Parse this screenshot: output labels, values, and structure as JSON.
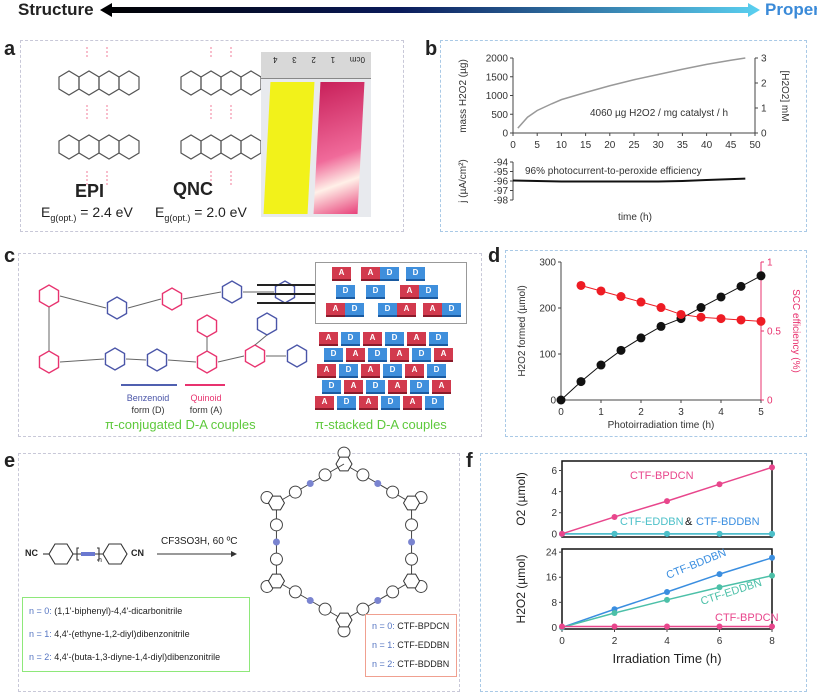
{
  "header": {
    "left": "Structure",
    "right": "Property",
    "left_color": "#000000",
    "right_color": "#3a8ad8"
  },
  "panels": {
    "a": {
      "label": "a",
      "mol1": "EPI",
      "mol1_gap": "= 2.4 eV",
      "mol2": "QNC",
      "mol2_gap": "= 2.0 eV",
      "gap_symbol": "E",
      "gap_sub": "g(opt.)",
      "ruler": [
        "4",
        "3",
        "2",
        "1",
        "0cm"
      ]
    },
    "b": {
      "label": "b"
    },
    "c": {
      "label": "c",
      "benzenoid": [
        "Benzenoid",
        "form (D)"
      ],
      "quinoid": [
        "Quinoid",
        "form (A)"
      ],
      "caption_left": "π-conjugated D-A couples",
      "caption_right": "π-stacked D-A couples",
      "tile_a": "A",
      "tile_d": "D"
    },
    "d": {
      "label": "d"
    },
    "e": {
      "label": "e",
      "reagent": "CF3SO3H, 60 ºC",
      "nc": "NC",
      "cn": "CN",
      "n_sub": "n",
      "monomers": [
        {
          "n": "n = 0:",
          "name": "(1,1'-biphenyl)-4,4'-dicarbonitrile"
        },
        {
          "n": "n = 1:",
          "name": "4,4'-(ethyne-1,2-diyl)dibenzonitrile"
        },
        {
          "n": "n = 2:",
          "name": "4,4'-(buta-1,3-diyne-1,4-diyl)dibenzonitrile"
        }
      ],
      "products": [
        {
          "n": "n = 0:",
          "name": "CTF-BPDCN"
        },
        {
          "n": "n = 1:",
          "name": "CTF-EDDBN"
        },
        {
          "n": "n = 2:",
          "name": "CTF-BDDBN"
        }
      ]
    },
    "f": {
      "label": "f"
    }
  },
  "chart_data": [
    {
      "id": "b-top",
      "type": "line",
      "xlabel": "time (h)",
      "ylabel": "mass  H2O2 (µg)",
      "y2label": "[H2O2] mM",
      "xlim": [
        0,
        50
      ],
      "ylim": [
        0,
        2000
      ],
      "y2lim": [
        0,
        3
      ],
      "xticks": [
        0,
        5,
        10,
        15,
        20,
        25,
        30,
        35,
        40,
        45,
        50
      ],
      "yticks": [
        0,
        500,
        1000,
        1500,
        2000
      ],
      "y2ticks": [
        0,
        1,
        2,
        3
      ],
      "annotation": "4060 µg H2O2 / mg catalyst / h",
      "color": "#999999",
      "x": [
        1,
        3,
        5,
        8,
        10,
        15,
        20,
        25,
        30,
        35,
        40,
        45,
        48
      ],
      "y": [
        130,
        420,
        600,
        780,
        890,
        1080,
        1260,
        1420,
        1560,
        1700,
        1830,
        1940,
        2000
      ]
    },
    {
      "id": "b-bottom",
      "type": "line",
      "ylabel": "j (µA/cm²)",
      "xlim": [
        0,
        50
      ],
      "ylim": [
        -98,
        -94
      ],
      "yticks": [
        -94,
        -95,
        -96,
        -97,
        -98
      ],
      "annotation": "96% photocurrent-to-peroxide efficiency",
      "color": "#111111",
      "x": [
        0,
        10,
        20,
        30,
        35,
        40,
        48
      ],
      "y": [
        -95.95,
        -96.05,
        -96.05,
        -96.05,
        -96.0,
        -95.9,
        -95.75
      ]
    },
    {
      "id": "d",
      "type": "scatter-line",
      "xlabel": "Photoirradiation time (h)",
      "ylabel": "H2O2 formed (µmol)",
      "y2label": "SCC efficiency (%)",
      "xlim": [
        0,
        5
      ],
      "ylim": [
        0,
        300
      ],
      "y2lim": [
        0,
        1
      ],
      "xticks": [
        0,
        1,
        2,
        3,
        4,
        5
      ],
      "yticks": [
        0,
        100,
        200,
        300
      ],
      "y2ticks": [
        0,
        0.5,
        1
      ],
      "series": [
        {
          "name": "H2O2 formed",
          "axis": "left",
          "color": "#111111",
          "x": [
            0,
            0.5,
            1,
            1.5,
            2,
            2.5,
            3,
            3.5,
            4,
            4.5,
            5
          ],
          "y": [
            0,
            40,
            76,
            108,
            135,
            160,
            177,
            201,
            224,
            247,
            270
          ]
        },
        {
          "name": "SCC efficiency",
          "axis": "right",
          "color": "#ee1c24",
          "x": [
            0.5,
            1,
            1.5,
            2,
            2.5,
            3,
            3.5,
            4,
            4.5,
            5
          ],
          "y": [
            0.83,
            0.79,
            0.75,
            0.71,
            0.67,
            0.62,
            0.6,
            0.59,
            0.58,
            0.57
          ]
        }
      ],
      "y2color": "#e8336f"
    },
    {
      "id": "f-top",
      "type": "scatter-line",
      "ylabel": "O2 (µmol)",
      "xlim": [
        0,
        8
      ],
      "ylim": [
        -0.3,
        6.9
      ],
      "yticks": [
        0,
        2,
        4,
        6
      ],
      "annotation_dark": "&",
      "series": [
        {
          "name": "CTF-BPDCN",
          "color": "#e8468c",
          "x": [
            0,
            2,
            4,
            6,
            8
          ],
          "y": [
            0,
            1.6,
            3.1,
            4.7,
            6.3
          ]
        },
        {
          "name": "CTF-EDDBN",
          "color": "#4cc0c8",
          "x": [
            0,
            2,
            4,
            6,
            8
          ],
          "y": [
            0,
            0,
            0,
            0,
            0
          ]
        },
        {
          "name": "CTF-BDDBN",
          "color": "#3a8ee0",
          "x": [
            0,
            2,
            4,
            6,
            8
          ],
          "y": [
            0,
            0,
            0,
            0,
            0
          ]
        }
      ]
    },
    {
      "id": "f-bottom",
      "type": "scatter-line",
      "xlabel": "Irradiation Time (h)",
      "ylabel": "H2O2 (µmol)",
      "xlim": [
        0,
        8
      ],
      "ylim": [
        -0.5,
        25
      ],
      "xticks": [
        0,
        2,
        4,
        6,
        8
      ],
      "yticks": [
        0,
        8,
        16,
        24
      ],
      "series": [
        {
          "name": "CTF-BDDBN",
          "color": "#3a8ee0",
          "x": [
            0,
            2,
            4,
            6,
            8
          ],
          "y": [
            0,
            5.8,
            11.3,
            17,
            22.2
          ]
        },
        {
          "name": "CTF-EDDBN",
          "color": "#4cc0a8",
          "x": [
            0,
            2,
            4,
            6,
            8
          ],
          "y": [
            0,
            4.6,
            8.8,
            12.8,
            16.5
          ]
        },
        {
          "name": "CTF-BPDCN",
          "color": "#e8468c",
          "x": [
            0,
            2,
            4,
            6,
            8
          ],
          "y": [
            0.3,
            0.3,
            0.3,
            0.3,
            0.3
          ]
        }
      ]
    }
  ]
}
